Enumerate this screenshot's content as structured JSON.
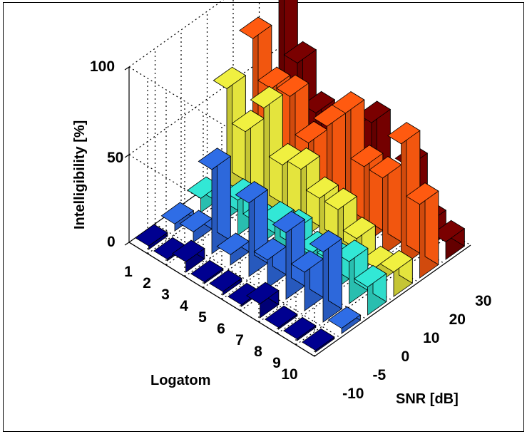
{
  "chart_data": {
    "type": "bar3d",
    "title": "",
    "zlabel": "Intelligibility [%]",
    "xlabel": "SNR [dB]",
    "ylabel": "Logatom",
    "z_ticks": [
      "0",
      "50",
      "100"
    ],
    "zlim": [
      0,
      100
    ],
    "snr": [
      "-10",
      "-5",
      "0",
      "10",
      "20",
      "30"
    ],
    "logatoms": [
      "1",
      "2",
      "3",
      "4",
      "5",
      "6",
      "7",
      "8",
      "9",
      "10"
    ],
    "grid": true,
    "colors": [
      "#000090",
      "#2f6de6",
      "#32e8d6",
      "#f0f040",
      "#ff5a10",
      "#7a0000"
    ],
    "values": [
      [
        2,
        4,
        8,
        60,
        78,
        94
      ],
      [
        1,
        6,
        12,
        42,
        56,
        60
      ],
      [
        6,
        48,
        20,
        62,
        58,
        38
      ],
      [
        1,
        6,
        14,
        36,
        38,
        26
      ],
      [
        2,
        42,
        20,
        40,
        54,
        42
      ],
      [
        1,
        16,
        22,
        30,
        68,
        52
      ],
      [
        8,
        38,
        16,
        30,
        44,
        18
      ],
      [
        1,
        22,
        18,
        20,
        44,
        40
      ],
      [
        1,
        40,
        24,
        10,
        70,
        14
      ],
      [
        1,
        3,
        16,
        14,
        42,
        10
      ]
    ]
  }
}
